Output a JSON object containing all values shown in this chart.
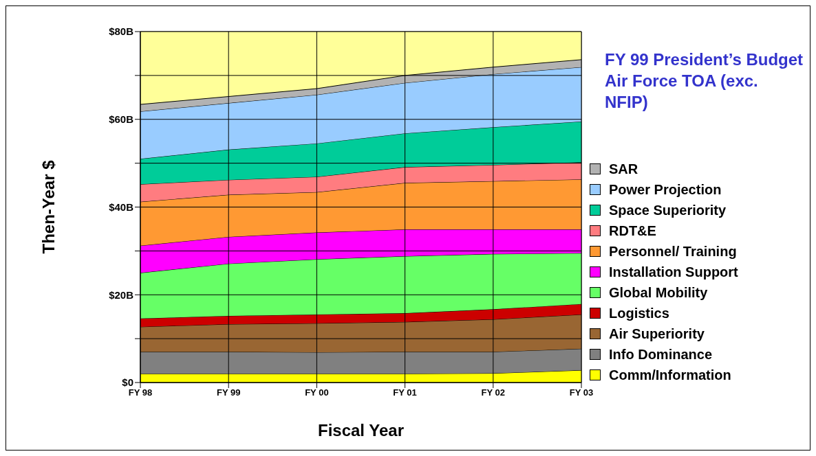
{
  "chart_data": {
    "type": "area",
    "stacked": true,
    "title": "FY 99 President’s Budget Air Force TOA (exc. NFIP)",
    "xlabel": "Fiscal Year",
    "ylabel": "Then-Year $",
    "categories": [
      "FY 98",
      "FY 99",
      "FY 00",
      "FY 01",
      "FY 02",
      "FY 03"
    ],
    "series": [
      {
        "name": "Comm/Information",
        "color": "#ffff00",
        "values": [
          2.0,
          2.0,
          2.0,
          2.0,
          2.1,
          2.8
        ]
      },
      {
        "name": "Info Dominance",
        "color": "#808080",
        "values": [
          5.0,
          5.0,
          4.9,
          5.0,
          4.9,
          4.9
        ]
      },
      {
        "name": "Air Superiority",
        "color": "#996633",
        "values": [
          5.7,
          6.3,
          6.6,
          6.8,
          7.4,
          7.8
        ]
      },
      {
        "name": "Logistics",
        "color": "#cc0000",
        "values": [
          1.9,
          1.9,
          2.0,
          2.0,
          2.3,
          2.4
        ]
      },
      {
        "name": "Global Mobility",
        "color": "#66ff66",
        "values": [
          10.4,
          11.9,
          12.6,
          13.0,
          12.6,
          11.6
        ]
      },
      {
        "name": "Installation Support",
        "color": "#ff00ff",
        "values": [
          6.2,
          6.1,
          6.1,
          6.1,
          5.6,
          5.4
        ]
      },
      {
        "name": "Personnel/ Training",
        "color": "#ff9933",
        "values": [
          10.0,
          9.6,
          9.2,
          10.6,
          11.0,
          11.4
        ]
      },
      {
        "name": "RDT&E",
        "color": "#ff7c80",
        "values": [
          4.0,
          3.4,
          3.5,
          3.6,
          3.7,
          3.9
        ]
      },
      {
        "name": "Space Superiority",
        "color": "#00cc99",
        "values": [
          5.8,
          6.9,
          7.6,
          7.7,
          8.6,
          9.3
        ]
      },
      {
        "name": "Power Projection",
        "color": "#99ccff",
        "values": [
          10.8,
          10.6,
          11.1,
          11.5,
          12.1,
          12.4
        ]
      },
      {
        "name": "SAR",
        "color": "#b2b2b2",
        "values": [
          1.6,
          1.5,
          1.4,
          1.7,
          1.6,
          1.7
        ]
      }
    ],
    "ylim": [
      0,
      80
    ],
    "yticks": [
      {
        "value": 0,
        "label": "$0"
      },
      {
        "value": 10,
        "label": null
      },
      {
        "value": 20,
        "label": "$20B"
      },
      {
        "value": 30,
        "label": null
      },
      {
        "value": 40,
        "label": "$40B"
      },
      {
        "value": 50,
        "label": null
      },
      {
        "value": 60,
        "label": "$60B"
      },
      {
        "value": 70,
        "label": null
      },
      {
        "value": 80,
        "label": "$80B"
      }
    ],
    "bands": [
      {
        "axis": "y",
        "from": 0,
        "to": 80,
        "color": "#ffff99"
      }
    ],
    "grid": true,
    "legend": "right"
  }
}
